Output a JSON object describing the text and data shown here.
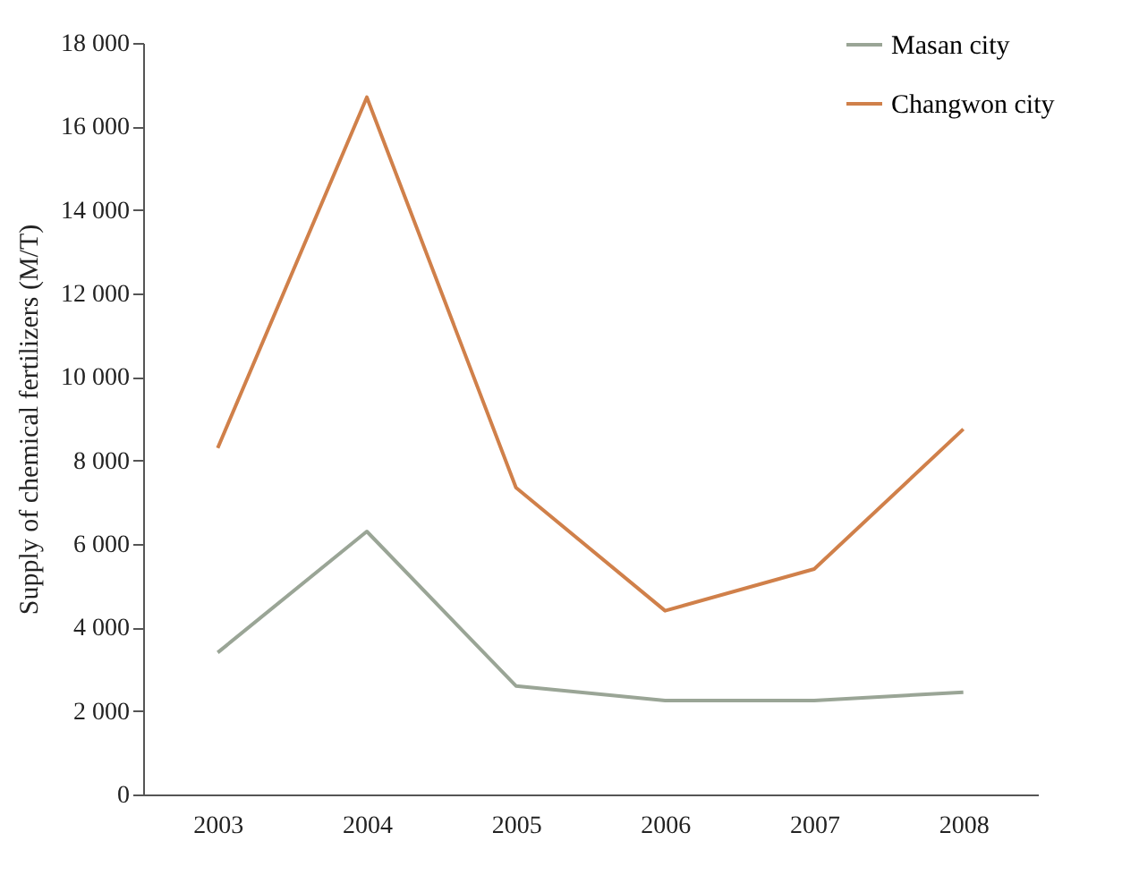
{
  "chart_data": {
    "type": "line",
    "ylabel": "Supply of chemical fertilizers (M/T)",
    "categories": [
      "2003",
      "2004",
      "2005",
      "2006",
      "2007",
      "2008"
    ],
    "series": [
      {
        "name": "Masan city",
        "color": "#9aa596",
        "values": [
          3400,
          6300,
          2600,
          2250,
          2250,
          2450
        ]
      },
      {
        "name": "Changwon city",
        "color": "#d0804a",
        "values": [
          8300,
          16700,
          7350,
          4400,
          5400,
          8750
        ]
      }
    ],
    "ylim": [
      0,
      18000
    ],
    "yticks": [
      {
        "value": 0,
        "label": "0"
      },
      {
        "value": 2000,
        "label": "2 000"
      },
      {
        "value": 4000,
        "label": "4 000"
      },
      {
        "value": 6000,
        "label": "6 000"
      },
      {
        "value": 8000,
        "label": "8 000"
      },
      {
        "value": 10000,
        "label": "10 000"
      },
      {
        "value": 12000,
        "label": "12 000"
      },
      {
        "value": 14000,
        "label": "14 000"
      },
      {
        "value": 16000,
        "label": "16 000"
      },
      {
        "value": 18000,
        "label": "18 000"
      }
    ],
    "grid": false,
    "legend": "top right",
    "marker": "none",
    "line_style": "solid"
  }
}
